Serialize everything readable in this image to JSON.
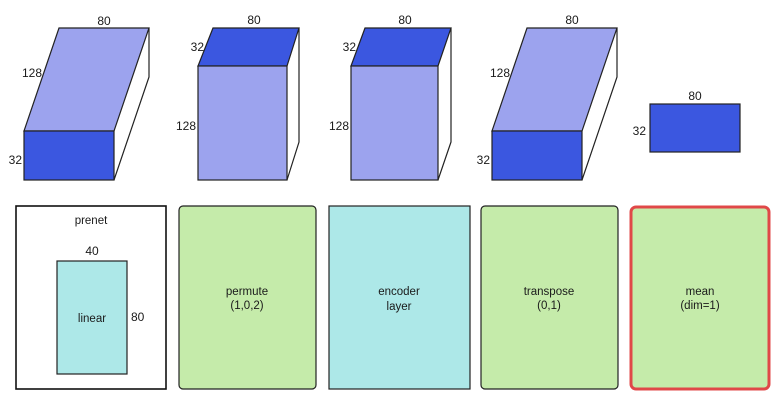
{
  "colors": {
    "face_dark": "#3b57e0",
    "face_light": "#9ca3ee",
    "box_green": "#c5ebaa",
    "box_cyan": "#ade8e8",
    "box_white": "#ffffff",
    "highlight_border": "#e04848"
  },
  "tensors": [
    {
      "id": "input",
      "top": "80",
      "side": "128",
      "front": "32"
    },
    {
      "id": "permuted",
      "top": "80",
      "side": "32",
      "front": "128"
    },
    {
      "id": "encoded",
      "top": "80",
      "side": "32",
      "front": "128"
    },
    {
      "id": "transposed",
      "top": "80",
      "side": "128",
      "front": "32"
    },
    {
      "id": "pooled",
      "top": "80",
      "side": "32"
    }
  ],
  "ops": {
    "prenet": {
      "title": "prenet",
      "inner_label": "linear",
      "inner_top": "40",
      "inner_right": "80"
    },
    "permute": {
      "line1": "permute",
      "line2": "(1,0,2)"
    },
    "encoder": {
      "line1": "encoder",
      "line2": "layer"
    },
    "transpose": {
      "line1": "transpose",
      "line2": "(0,1)"
    },
    "mean": {
      "line1": "mean",
      "line2": "(dim=1)"
    }
  }
}
